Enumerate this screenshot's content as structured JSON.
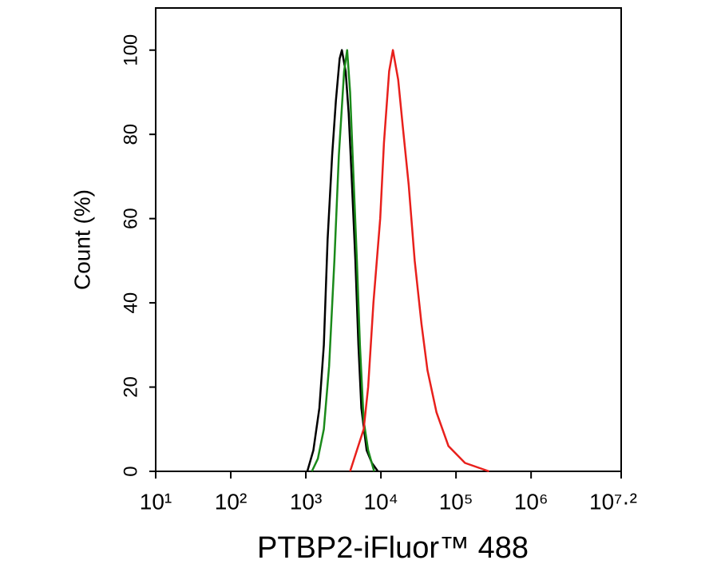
{
  "chart_data": {
    "type": "line",
    "x_label": "PTBP2-iFluor™ 488",
    "y_label": "Count (%)",
    "x_log": true,
    "xlim": [
      10,
      15848932
    ],
    "ylim": [
      0,
      110
    ],
    "xticks": [
      {
        "value": 10,
        "label": "10¹"
      },
      {
        "value": 100,
        "label": "10²"
      },
      {
        "value": 1000,
        "label": "10³"
      },
      {
        "value": 10000,
        "label": "10⁴"
      },
      {
        "value": 100000,
        "label": "10⁵"
      },
      {
        "value": 1000000,
        "label": "10⁶"
      },
      {
        "value": 15848932,
        "label": "10⁷·²"
      }
    ],
    "yticks": [
      0,
      20,
      40,
      60,
      80,
      100
    ],
    "series": [
      {
        "color": "#000000",
        "x": [
          1047,
          1259,
          1514,
          1738,
          1950,
          2239,
          2512,
          2818,
          3020,
          3388,
          3715,
          4074,
          4571,
          5012,
          5495,
          6457,
          7586,
          9120
        ],
        "values": [
          0,
          5,
          15,
          30,
          55,
          75,
          88,
          98,
          100,
          95,
          85,
          70,
          50,
          30,
          15,
          5,
          2,
          0
        ]
      },
      {
        "color": "#1a8a1a",
        "x": [
          1202,
          1445,
          1738,
          2042,
          2399,
          2754,
          3236,
          3548,
          3890,
          4266,
          4786,
          5248,
          5888,
          6761,
          8128
        ],
        "values": [
          0,
          3,
          10,
          25,
          50,
          75,
          95,
          100,
          90,
          72,
          50,
          30,
          12,
          5,
          0
        ]
      },
      {
        "color": "#e8201c",
        "x": [
          3890,
          5888,
          6761,
          7943,
          9772,
          10965,
          12882,
          14454,
          16982,
          19498,
          23442,
          28184,
          34674,
          41687,
          54954,
          79433,
          131826,
          275423
        ],
        "values": [
          0,
          10,
          20,
          40,
          60,
          78,
          95,
          100,
          93,
          82,
          68,
          50,
          35,
          24,
          14,
          6,
          2,
          0
        ]
      }
    ]
  }
}
